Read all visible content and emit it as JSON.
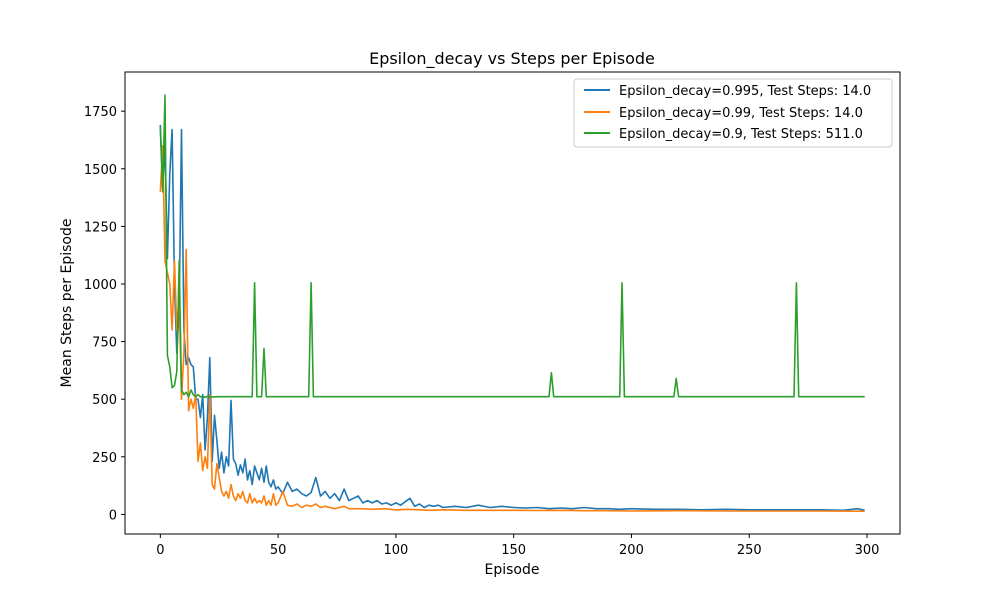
{
  "chart_data": {
    "type": "line",
    "title": "Epsilon_decay vs Steps per Episode",
    "xlabel": "Episode",
    "ylabel": "Mean Steps per Episode",
    "xlim": [
      -15,
      314
    ],
    "ylim": [
      -85,
      1920
    ],
    "xticks": [
      0,
      50,
      100,
      150,
      200,
      250,
      300
    ],
    "yticks": [
      0,
      250,
      500,
      750,
      1000,
      1250,
      1500,
      1750
    ],
    "grid": false,
    "legend_position": "top-right",
    "series": [
      {
        "name": "Epsilon_decay=0.995, Test Steps: 14.0",
        "color": "#1f77b4",
        "points": [
          [
            0,
            1690
          ],
          [
            1,
            1420
          ],
          [
            2,
            1600
          ],
          [
            3,
            1110
          ],
          [
            4,
            1480
          ],
          [
            5,
            1670
          ],
          [
            6,
            1000
          ],
          [
            7,
            700
          ],
          [
            8,
            900
          ],
          [
            9,
            1670
          ],
          [
            10,
            800
          ],
          [
            11,
            650
          ],
          [
            12,
            680
          ],
          [
            13,
            650
          ],
          [
            14,
            640
          ],
          [
            15,
            500
          ],
          [
            16,
            500
          ],
          [
            17,
            420
          ],
          [
            18,
            520
          ],
          [
            19,
            280
          ],
          [
            20,
            420
          ],
          [
            21,
            680
          ],
          [
            22,
            230
          ],
          [
            23,
            430
          ],
          [
            24,
            320
          ],
          [
            25,
            200
          ],
          [
            26,
            270
          ],
          [
            27,
            180
          ],
          [
            28,
            250
          ],
          [
            29,
            210
          ],
          [
            30,
            495
          ],
          [
            31,
            240
          ],
          [
            32,
            220
          ],
          [
            33,
            170
          ],
          [
            34,
            215
          ],
          [
            35,
            180
          ],
          [
            36,
            240
          ],
          [
            37,
            150
          ],
          [
            38,
            190
          ],
          [
            39,
            130
          ],
          [
            40,
            210
          ],
          [
            41,
            180
          ],
          [
            42,
            150
          ],
          [
            43,
            200
          ],
          [
            44,
            140
          ],
          [
            45,
            210
          ],
          [
            46,
            140
          ],
          [
            47,
            120
          ],
          [
            48,
            150
          ],
          [
            49,
            110
          ],
          [
            50,
            120
          ],
          [
            52,
            90
          ],
          [
            54,
            140
          ],
          [
            56,
            100
          ],
          [
            58,
            110
          ],
          [
            60,
            90
          ],
          [
            62,
            80
          ],
          [
            64,
            95
          ],
          [
            66,
            160
          ],
          [
            68,
            80
          ],
          [
            70,
            100
          ],
          [
            72,
            70
          ],
          [
            74,
            90
          ],
          [
            76,
            60
          ],
          [
            78,
            110
          ],
          [
            80,
            60
          ],
          [
            82,
            70
          ],
          [
            84,
            80
          ],
          [
            86,
            50
          ],
          [
            88,
            60
          ],
          [
            90,
            50
          ],
          [
            92,
            60
          ],
          [
            94,
            45
          ],
          [
            96,
            50
          ],
          [
            98,
            40
          ],
          [
            100,
            50
          ],
          [
            102,
            40
          ],
          [
            104,
            55
          ],
          [
            106,
            70
          ],
          [
            108,
            35
          ],
          [
            110,
            45
          ],
          [
            112,
            30
          ],
          [
            114,
            40
          ],
          [
            116,
            35
          ],
          [
            118,
            40
          ],
          [
            120,
            30
          ],
          [
            125,
            35
          ],
          [
            130,
            30
          ],
          [
            135,
            40
          ],
          [
            140,
            30
          ],
          [
            145,
            35
          ],
          [
            150,
            30
          ],
          [
            155,
            28
          ],
          [
            160,
            30
          ],
          [
            165,
            25
          ],
          [
            170,
            28
          ],
          [
            175,
            25
          ],
          [
            180,
            30
          ],
          [
            185,
            25
          ],
          [
            190,
            25
          ],
          [
            195,
            22
          ],
          [
            200,
            25
          ],
          [
            210,
            22
          ],
          [
            220,
            22
          ],
          [
            230,
            20
          ],
          [
            240,
            22
          ],
          [
            250,
            20
          ],
          [
            260,
            20
          ],
          [
            270,
            20
          ],
          [
            280,
            20
          ],
          [
            290,
            18
          ],
          [
            296,
            25
          ],
          [
            299,
            18
          ]
        ]
      },
      {
        "name": "Epsilon_decay=0.99, Test Steps: 14.0",
        "color": "#ff7f0e",
        "points": [
          [
            0,
            1400
          ],
          [
            1,
            1600
          ],
          [
            2,
            1100
          ],
          [
            3,
            1050
          ],
          [
            4,
            1000
          ],
          [
            5,
            800
          ],
          [
            6,
            1100
          ],
          [
            7,
            800
          ],
          [
            8,
            950
          ],
          [
            9,
            500
          ],
          [
            10,
            700
          ],
          [
            11,
            1150
          ],
          [
            12,
            450
          ],
          [
            13,
            500
          ],
          [
            14,
            460
          ],
          [
            15,
            520
          ],
          [
            16,
            230
          ],
          [
            17,
            310
          ],
          [
            18,
            190
          ],
          [
            19,
            250
          ],
          [
            20,
            200
          ],
          [
            21,
            520
          ],
          [
            22,
            130
          ],
          [
            23,
            110
          ],
          [
            24,
            220
          ],
          [
            25,
            160
          ],
          [
            26,
            100
          ],
          [
            27,
            80
          ],
          [
            28,
            100
          ],
          [
            29,
            70
          ],
          [
            30,
            130
          ],
          [
            31,
            80
          ],
          [
            32,
            60
          ],
          [
            33,
            90
          ],
          [
            34,
            70
          ],
          [
            35,
            100
          ],
          [
            36,
            60
          ],
          [
            37,
            50
          ],
          [
            38,
            90
          ],
          [
            39,
            50
          ],
          [
            40,
            70
          ],
          [
            41,
            50
          ],
          [
            42,
            60
          ],
          [
            43,
            50
          ],
          [
            44,
            80
          ],
          [
            45,
            40
          ],
          [
            46,
            60
          ],
          [
            47,
            40
          ],
          [
            48,
            90
          ],
          [
            49,
            40
          ],
          [
            50,
            50
          ],
          [
            52,
            100
          ],
          [
            54,
            40
          ],
          [
            56,
            35
          ],
          [
            58,
            45
          ],
          [
            60,
            30
          ],
          [
            62,
            40
          ],
          [
            64,
            35
          ],
          [
            66,
            45
          ],
          [
            68,
            30
          ],
          [
            70,
            35
          ],
          [
            72,
            30
          ],
          [
            74,
            25
          ],
          [
            76,
            30
          ],
          [
            78,
            35
          ],
          [
            80,
            25
          ],
          [
            85,
            25
          ],
          [
            90,
            22
          ],
          [
            95,
            25
          ],
          [
            100,
            20
          ],
          [
            105,
            22
          ],
          [
            110,
            20
          ],
          [
            115,
            18
          ],
          [
            120,
            20
          ],
          [
            130,
            18
          ],
          [
            140,
            18
          ],
          [
            150,
            18
          ],
          [
            160,
            17
          ],
          [
            170,
            18
          ],
          [
            180,
            16
          ],
          [
            190,
            16
          ],
          [
            200,
            15
          ],
          [
            220,
            16
          ],
          [
            240,
            15
          ],
          [
            260,
            15
          ],
          [
            280,
            15
          ],
          [
            299,
            14
          ]
        ]
      },
      {
        "name": "Epsilon_decay=0.9, Test Steps: 511.0",
        "color": "#2ca02c",
        "points": [
          [
            0,
            1680
          ],
          [
            1,
            1400
          ],
          [
            2,
            1820
          ],
          [
            3,
            690
          ],
          [
            4,
            640
          ],
          [
            5,
            550
          ],
          [
            6,
            560
          ],
          [
            7,
            620
          ],
          [
            8,
            1100
          ],
          [
            9,
            540
          ],
          [
            10,
            520
          ],
          [
            11,
            530
          ],
          [
            12,
            510
          ],
          [
            13,
            540
          ],
          [
            14,
            520
          ],
          [
            15,
            510
          ],
          [
            16,
            520
          ],
          [
            17,
            510
          ],
          [
            18,
            512
          ],
          [
            19,
            508
          ],
          [
            20,
            512
          ],
          [
            22,
            510
          ],
          [
            25,
            511
          ],
          [
            30,
            511
          ],
          [
            35,
            511
          ],
          [
            38,
            511
          ],
          [
            39,
            511
          ],
          [
            40,
            1005
          ],
          [
            41,
            511
          ],
          [
            42,
            511
          ],
          [
            43,
            511
          ],
          [
            44,
            720
          ],
          [
            45,
            511
          ],
          [
            46,
            511
          ],
          [
            50,
            511
          ],
          [
            55,
            511
          ],
          [
            60,
            511
          ],
          [
            63,
            511
          ],
          [
            64,
            1005
          ],
          [
            65,
            511
          ],
          [
            66,
            511
          ],
          [
            70,
            511
          ],
          [
            80,
            511
          ],
          [
            90,
            511
          ],
          [
            100,
            511
          ],
          [
            110,
            511
          ],
          [
            120,
            511
          ],
          [
            130,
            511
          ],
          [
            140,
            511
          ],
          [
            150,
            511
          ],
          [
            160,
            511
          ],
          [
            165,
            511
          ],
          [
            166,
            615
          ],
          [
            167,
            511
          ],
          [
            168,
            511
          ],
          [
            180,
            511
          ],
          [
            190,
            511
          ],
          [
            195,
            511
          ],
          [
            196,
            1005
          ],
          [
            197,
            511
          ],
          [
            198,
            511
          ],
          [
            205,
            511
          ],
          [
            210,
            511
          ],
          [
            218,
            511
          ],
          [
            219,
            590
          ],
          [
            220,
            511
          ],
          [
            221,
            511
          ],
          [
            230,
            511
          ],
          [
            240,
            511
          ],
          [
            250,
            511
          ],
          [
            260,
            511
          ],
          [
            269,
            511
          ],
          [
            270,
            1005
          ],
          [
            271,
            511
          ],
          [
            272,
            511
          ],
          [
            280,
            511
          ],
          [
            290,
            511
          ],
          [
            299,
            511
          ]
        ]
      }
    ]
  }
}
